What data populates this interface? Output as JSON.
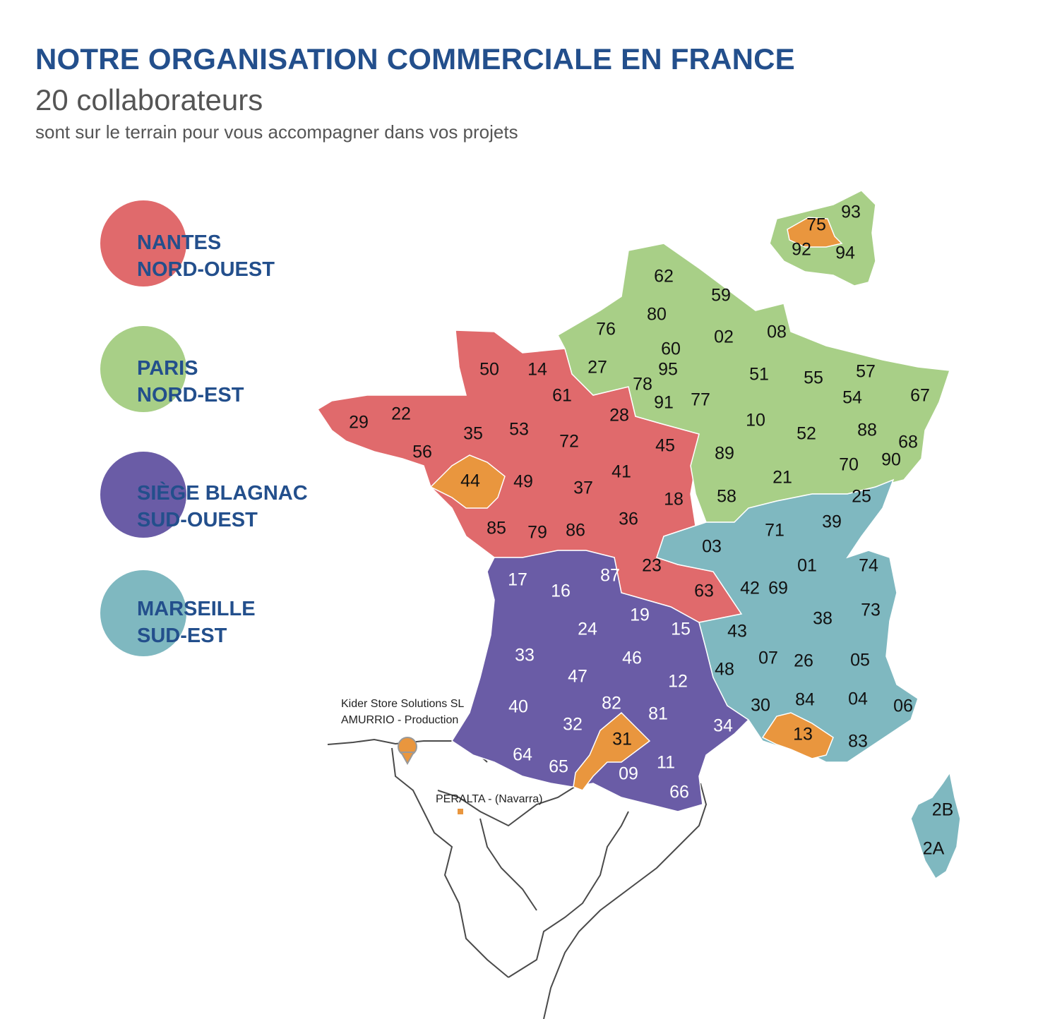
{
  "header": {
    "title": "NOTRE ORGANISATION COMMERCIALE EN FRANCE",
    "subtitle": "20 collaborateurs",
    "tagline": "sont sur le terrain pour vous accompagner dans vos projets"
  },
  "colors": {
    "nord_ouest": "#e06a6c",
    "nord_est": "#a8cf87",
    "sud_ouest": "#6a5ca6",
    "sud_est": "#7fb8c0",
    "agency": "#e9963e",
    "title": "#234f8c"
  },
  "legend": [
    {
      "line1": "NANTES",
      "line2": "NORD-OUEST",
      "color": "#e06a6c"
    },
    {
      "line1": "PARIS",
      "line2": "NORD-EST",
      "color": "#a8cf87"
    },
    {
      "line1": "SIÈGE BLAGNAC",
      "line2": "SUD-OUEST",
      "color": "#6a5ca6"
    },
    {
      "line1": "MARSEILLE",
      "line2": "SUD-EST",
      "color": "#7fb8c0"
    }
  ],
  "map": {
    "departments": {
      "nord_ouest": [
        "50",
        "14",
        "61",
        "29",
        "22",
        "35",
        "53",
        "72",
        "28",
        "56",
        "49",
        "45",
        "41",
        "37",
        "18",
        "85",
        "79",
        "86",
        "36",
        "23",
        "63"
      ],
      "nord_est": [
        "62",
        "59",
        "80",
        "76",
        "02",
        "08",
        "60",
        "95",
        "27",
        "78",
        "91",
        "77",
        "51",
        "55",
        "57",
        "67",
        "54",
        "10",
        "52",
        "88",
        "68",
        "89",
        "21",
        "70",
        "90",
        "58"
      ],
      "sud_ouest": [
        "17",
        "16",
        "87",
        "19",
        "24",
        "15",
        "33",
        "46",
        "47",
        "12",
        "82",
        "81",
        "40",
        "32",
        "34",
        "64",
        "65",
        "09",
        "11",
        "66"
      ],
      "sud_est": [
        "25",
        "71",
        "39",
        "03",
        "01",
        "74",
        "42",
        "69",
        "73",
        "38",
        "43",
        "07",
        "26",
        "05",
        "48",
        "84",
        "04",
        "06",
        "30",
        "83",
        "2B",
        "2A"
      ],
      "agencies": [
        "75",
        "44",
        "31",
        "13"
      ],
      "paris_inset": [
        "93",
        "92",
        "94"
      ]
    },
    "pins": {
      "production": {
        "line1": "Kider Store Solutions SL",
        "line2": "AMURRIO - Production"
      },
      "peralta": "PERALTA - (Navarra)"
    }
  }
}
